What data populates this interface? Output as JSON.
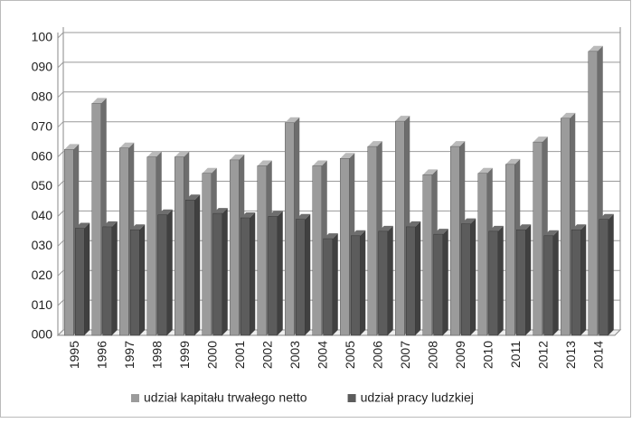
{
  "chart_data": {
    "type": "bar",
    "categories": [
      "1995",
      "1996",
      "1997",
      "1998",
      "1999",
      "2000",
      "2001",
      "2002",
      "2003",
      "2004",
      "2005",
      "2006",
      "2007",
      "2008",
      "2009",
      "2010",
      "2011",
      "2012",
      "2013",
      "2014"
    ],
    "series": [
      {
        "name": "udział kapitału trwałego netto",
        "color": "#9b9b9b",
        "values": [
          62.5,
          78,
          63,
          60,
          60,
          54.5,
          59,
          57,
          71.5,
          57,
          59.5,
          63.5,
          72,
          54,
          63.5,
          54.5,
          57.5,
          65,
          73,
          95.5
        ]
      },
      {
        "name": "udział pracy ludzkiej",
        "color": "#5c5c5c",
        "values": [
          36,
          36.5,
          35.5,
          40.5,
          45.5,
          41,
          39.5,
          40,
          39,
          32.5,
          33.5,
          35,
          36.5,
          34,
          37.5,
          35,
          35.5,
          33.5,
          35.5,
          39
        ]
      }
    ],
    "ylim": [
      0,
      100
    ],
    "yticks": [
      {
        "value": 0,
        "label": "000"
      },
      {
        "value": 10,
        "label": "010"
      },
      {
        "value": 20,
        "label": "020"
      },
      {
        "value": 30,
        "label": "030"
      },
      {
        "value": 40,
        "label": "040"
      },
      {
        "value": 50,
        "label": "050"
      },
      {
        "value": 60,
        "label": "060"
      },
      {
        "value": 70,
        "label": "070"
      },
      {
        "value": 80,
        "label": "080"
      },
      {
        "value": 90,
        "label": "090"
      },
      100
    ],
    "grid": true
  }
}
